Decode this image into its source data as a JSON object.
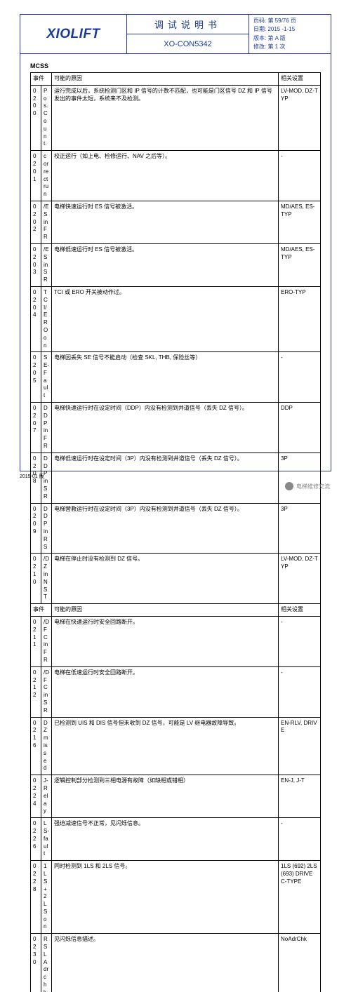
{
  "header": {
    "logo": "XIOLIFT",
    "title": "调试说明书",
    "doc_no": "XO-CON5342",
    "meta": {
      "page": "页码: 第 59/76 页",
      "date": "日期: 2015 -1-15",
      "version": "版本: 第 A 版",
      "revision": "修改: 第 1 次"
    }
  },
  "section_title": "MCSS",
  "columns": {
    "event": "事件",
    "cause": "可能的原因",
    "setting": "相关设置"
  },
  "rows": [
    {
      "code": "0200",
      "event": "Pos. Count.",
      "cause": "运行完成以后，系统检测门区和 IP 信号的计数不匹配，也可能是门区信号 DZ 和 IP 信号发出的事件太短，系统来不及检测。",
      "setting": "LV-MOD, DZ-TYP"
    },
    {
      "code": "0201",
      "event": "correct run",
      "cause": "校正运行（如上电、检修运行、NAV 之后等）。",
      "setting": "-"
    },
    {
      "code": "0202",
      "event": "/ES in FR",
      "cause": "电梯快速运行时 ES 信号被激活。",
      "setting": "MD/AES, ES-TYP"
    },
    {
      "code": "0203",
      "event": "/ES in SR",
      "cause": "电梯低速运行时 ES 信号被激活。",
      "setting": "MD/AES, ES-TYP"
    },
    {
      "code": "0204",
      "event": "TCI/ERO on",
      "cause": "TCI 或 ERO 开关被动作过。",
      "setting": "ERO-TYP"
    },
    {
      "code": "0205",
      "event": "SE-Fault",
      "cause": "电梯因丢失 SE 信号不能启动（检查 SKL, THB, 保险丝等）",
      "setting": "-"
    },
    {
      "code": "0207",
      "event": "DDP in FR",
      "cause": "电梯快速运行时在设定时间（DDP）内没有检测到井道信号（丢失 DZ 信号）。",
      "setting": "DDP"
    },
    {
      "code": "0208",
      "event": "DDP in SR",
      "cause": "电梯低速运行时在设定时间（3P）内没有检测到井道信号（丢失 DZ 信号）。",
      "setting": "3P"
    },
    {
      "code": "0209",
      "event": "DDP in RS",
      "cause": "电梯营救运行时在设定时间（3P）内没有检测到井道信号（丢失 DZ 信号）。",
      "setting": "3P"
    },
    {
      "code": "0210",
      "event": "/DZ in NST",
      "cause": "电梯在停止时没有检测到 DZ 信号。",
      "setting": "LV-MOD, DZ-TYP"
    },
    {
      "code": "",
      "event": "事件",
      "cause": "可能的原因",
      "setting": "相关设置",
      "cn": true
    },
    {
      "code": "0211",
      "event": "/DFC in FR",
      "cause": "电梯在快速运行时安全回路断开。",
      "setting": "-"
    },
    {
      "code": "0212",
      "event": "/DFC in SR",
      "cause": "电梯在低速运行时安全回路断开。",
      "setting": "-"
    },
    {
      "code": "0216",
      "event": "DZ missed",
      "cause": "已检测到 UIS 和 DIS 信号但未收到 DZ 信号，可能是 LV 继电器故障导致。",
      "setting": "EN-RLV, DRIVE"
    },
    {
      "code": "0224",
      "event": "J-Relay",
      "cause": "逻辑控制部分检测到三相电源有故障（如缺相或错相）",
      "setting": "EN-J, J-T"
    },
    {
      "code": "0226",
      "event": "LS-fault",
      "cause": "强迫减速信号不正常，见闪烁信息。",
      "setting": "-"
    },
    {
      "code": "0228",
      "event": "1LS+2LS on",
      "cause": "同时检测到 1LS 和 2LS 信号。",
      "setting": "1LS (692) 2LS (693) DRIVE C-TYPE"
    },
    {
      "code": "0230",
      "event": "RSL Adr chk",
      "cause": "见闪烁信息描述。",
      "setting": "NoAdrChk"
    }
  ],
  "footer_version": "2015-01 版",
  "footer_wechat": "电梯维修交流"
}
